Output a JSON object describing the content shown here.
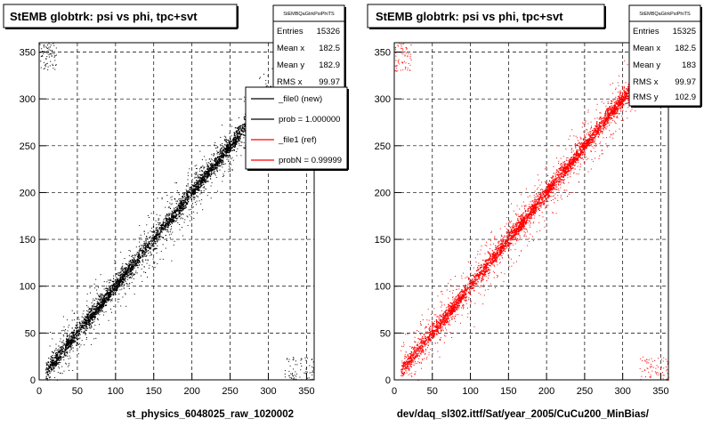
{
  "chart_data": [
    {
      "type": "scatter",
      "title": "StEMB globtrk: psi vs phi, tpc+svt",
      "xlabel": "st_physics_6048025_raw_1020002",
      "ylabel": "",
      "xlim": [
        0,
        360
      ],
      "ylim": [
        0,
        360
      ],
      "x_ticks": [
        0,
        50,
        100,
        150,
        200,
        250,
        300,
        350
      ],
      "y_ticks": [
        0,
        50,
        100,
        150,
        200,
        250,
        300,
        350
      ],
      "grid": true,
      "marker_color": "#000000",
      "stats_box": {
        "name": "StEMBQaGtrkPsiPhiTS",
        "rows": [
          {
            "label": "Entries",
            "value": "15326"
          },
          {
            "label": "Mean x",
            "value": "182.5"
          },
          {
            "label": "Mean y",
            "value": "182.9"
          },
          {
            "label": "RMS x",
            "value": "99.97"
          }
        ]
      },
      "legend": {
        "placement": "top-right",
        "entries": [
          {
            "label": "_file0 (new)",
            "color": "#000000"
          },
          {
            "label": "prob = 1.000000",
            "color": "#000000"
          },
          {
            "label": "_file1 (ref)",
            "color": "#ff0000"
          },
          {
            "label": "probN = 0.99999",
            "color": "#ff0000"
          }
        ]
      }
    },
    {
      "type": "scatter",
      "title": "StEMB globtrk: psi vs phi, tpc+svt",
      "xlabel": "dev/daq_sl302.ittf/Sat/year_2005/CuCu200_MinBias/",
      "ylabel": "",
      "xlim": [
        0,
        360
      ],
      "ylim": [
        0,
        360
      ],
      "x_ticks": [
        0,
        50,
        100,
        150,
        200,
        250,
        300,
        350
      ],
      "y_ticks": [
        0,
        50,
        100,
        150,
        200,
        250,
        300,
        350
      ],
      "grid": true,
      "marker_color": "#ff0000",
      "stats_box": {
        "name": "StEMBQaGtrkPsiPhiTS",
        "rows": [
          {
            "label": "Entries",
            "value": "15325"
          },
          {
            "label": "Mean x",
            "value": "182.5"
          },
          {
            "label": "Mean y",
            "value": "183"
          },
          {
            "label": "RMS x",
            "value": "99.97"
          },
          {
            "label": "RMS y",
            "value": "102.9"
          }
        ]
      }
    }
  ]
}
